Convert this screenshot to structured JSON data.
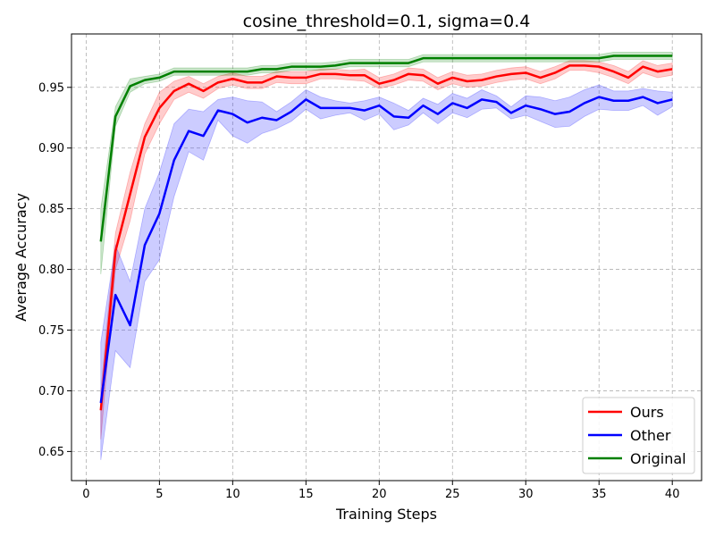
{
  "chart_data": {
    "type": "line",
    "title": "cosine_threshold=0.1, sigma=0.4",
    "xlabel": "Training Steps",
    "ylabel": "Average Accuracy",
    "xlim": [
      -1,
      42
    ],
    "ylim": [
      0.626,
      0.994
    ],
    "xticks": [
      0,
      5,
      10,
      15,
      20,
      25,
      30,
      35,
      40
    ],
    "yticks": [
      0.65,
      0.7,
      0.75,
      0.8,
      0.85,
      0.9,
      0.95
    ],
    "grid": true,
    "legend_position": "bottom-right",
    "x": [
      1,
      2,
      3,
      4,
      5,
      6,
      7,
      8,
      9,
      10,
      11,
      12,
      13,
      14,
      15,
      16,
      17,
      18,
      19,
      20,
      21,
      22,
      23,
      24,
      25,
      26,
      27,
      28,
      29,
      30,
      31,
      32,
      33,
      34,
      35,
      36,
      37,
      38,
      39,
      40
    ],
    "series": [
      {
        "name": "Ours",
        "color": "#ff0000",
        "values": [
          0.684,
          0.815,
          0.862,
          0.909,
          0.933,
          0.947,
          0.953,
          0.947,
          0.954,
          0.957,
          0.954,
          0.954,
          0.959,
          0.958,
          0.958,
          0.961,
          0.961,
          0.96,
          0.96,
          0.953,
          0.956,
          0.961,
          0.96,
          0.953,
          0.958,
          0.955,
          0.956,
          0.959,
          0.961,
          0.962,
          0.958,
          0.962,
          0.968,
          0.968,
          0.967,
          0.963,
          0.958,
          0.967,
          0.963,
          0.965
        ],
        "lower": [
          0.66,
          0.8,
          0.84,
          0.895,
          0.92,
          0.94,
          0.946,
          0.941,
          0.949,
          0.952,
          0.949,
          0.949,
          0.954,
          0.953,
          0.953,
          0.957,
          0.957,
          0.956,
          0.955,
          0.949,
          0.952,
          0.956,
          0.955,
          0.948,
          0.953,
          0.95,
          0.951,
          0.954,
          0.956,
          0.957,
          0.953,
          0.957,
          0.964,
          0.964,
          0.962,
          0.958,
          0.953,
          0.962,
          0.958,
          0.96
        ],
        "upper": [
          0.7,
          0.83,
          0.88,
          0.92,
          0.946,
          0.955,
          0.959,
          0.953,
          0.959,
          0.962,
          0.959,
          0.959,
          0.963,
          0.963,
          0.963,
          0.965,
          0.965,
          0.964,
          0.965,
          0.958,
          0.961,
          0.966,
          0.965,
          0.958,
          0.963,
          0.96,
          0.961,
          0.964,
          0.966,
          0.967,
          0.963,
          0.967,
          0.972,
          0.972,
          0.971,
          0.968,
          0.963,
          0.972,
          0.968,
          0.97
        ]
      },
      {
        "name": "Other",
        "color": "#0000ff",
        "values": [
          0.69,
          0.779,
          0.754,
          0.82,
          0.846,
          0.89,
          0.914,
          0.91,
          0.931,
          0.928,
          0.921,
          0.925,
          0.923,
          0.93,
          0.94,
          0.933,
          0.933,
          0.933,
          0.931,
          0.935,
          0.926,
          0.925,
          0.935,
          0.928,
          0.937,
          0.933,
          0.94,
          0.938,
          0.929,
          0.935,
          0.932,
          0.928,
          0.93,
          0.937,
          0.942,
          0.939,
          0.939,
          0.942,
          0.937,
          0.94
        ],
        "lower": [
          0.643,
          0.733,
          0.719,
          0.79,
          0.808,
          0.86,
          0.897,
          0.89,
          0.923,
          0.91,
          0.904,
          0.912,
          0.916,
          0.922,
          0.932,
          0.924,
          0.927,
          0.929,
          0.923,
          0.928,
          0.915,
          0.919,
          0.929,
          0.92,
          0.929,
          0.925,
          0.932,
          0.933,
          0.924,
          0.927,
          0.922,
          0.917,
          0.918,
          0.926,
          0.932,
          0.931,
          0.931,
          0.935,
          0.927,
          0.934
        ],
        "upper": [
          0.74,
          0.82,
          0.79,
          0.85,
          0.88,
          0.92,
          0.932,
          0.93,
          0.94,
          0.942,
          0.939,
          0.938,
          0.93,
          0.938,
          0.948,
          0.942,
          0.939,
          0.937,
          0.939,
          0.942,
          0.937,
          0.931,
          0.941,
          0.936,
          0.945,
          0.941,
          0.948,
          0.943,
          0.934,
          0.943,
          0.942,
          0.939,
          0.942,
          0.948,
          0.952,
          0.947,
          0.947,
          0.949,
          0.947,
          0.946
        ]
      },
      {
        "name": "Original",
        "color": "#008000",
        "values": [
          0.823,
          0.926,
          0.951,
          0.956,
          0.958,
          0.963,
          0.963,
          0.963,
          0.963,
          0.963,
          0.963,
          0.965,
          0.965,
          0.967,
          0.967,
          0.967,
          0.968,
          0.97,
          0.97,
          0.97,
          0.97,
          0.97,
          0.974,
          0.974,
          0.974,
          0.974,
          0.974,
          0.974,
          0.974,
          0.974,
          0.974,
          0.974,
          0.974,
          0.974,
          0.974,
          0.976,
          0.976,
          0.976,
          0.976,
          0.976
        ],
        "lower": [
          0.796,
          0.918,
          0.946,
          0.953,
          0.955,
          0.96,
          0.96,
          0.96,
          0.96,
          0.96,
          0.96,
          0.962,
          0.962,
          0.964,
          0.964,
          0.964,
          0.965,
          0.967,
          0.967,
          0.967,
          0.967,
          0.967,
          0.971,
          0.971,
          0.971,
          0.971,
          0.971,
          0.971,
          0.971,
          0.971,
          0.971,
          0.971,
          0.971,
          0.971,
          0.971,
          0.973,
          0.973,
          0.973,
          0.973,
          0.973
        ],
        "upper": [
          0.85,
          0.934,
          0.957,
          0.959,
          0.961,
          0.966,
          0.966,
          0.966,
          0.966,
          0.966,
          0.966,
          0.968,
          0.968,
          0.97,
          0.97,
          0.97,
          0.971,
          0.973,
          0.973,
          0.973,
          0.973,
          0.973,
          0.977,
          0.977,
          0.977,
          0.977,
          0.977,
          0.977,
          0.977,
          0.977,
          0.977,
          0.977,
          0.977,
          0.977,
          0.977,
          0.979,
          0.979,
          0.979,
          0.979,
          0.979
        ]
      }
    ]
  }
}
